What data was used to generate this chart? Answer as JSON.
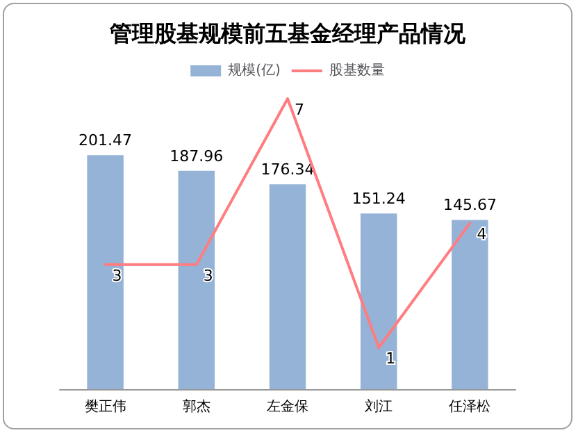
{
  "chart_data": {
    "type": "bar",
    "title": "管理股基规模前五基金经理产品情况",
    "categories": [
      "樊正伟",
      "郭杰",
      "左金保",
      "刘江",
      "任泽松"
    ],
    "series": [
      {
        "name": "规模(亿)",
        "color": "#95b3d7",
        "values": [
          201.47,
          187.96,
          176.34,
          151.24,
          145.67
        ]
      },
      {
        "name": "股基数量",
        "type": "line",
        "axis": "y2",
        "color": "#ff7c80",
        "values": [
          3,
          3,
          7,
          1,
          4
        ]
      }
    ],
    "data_labels": true,
    "legend": "top",
    "grid": false,
    "marker": "none"
  }
}
